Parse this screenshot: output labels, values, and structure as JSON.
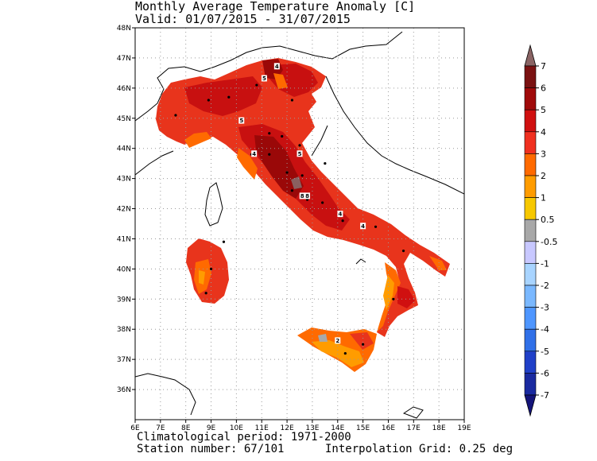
{
  "title": {
    "line1": "Monthly Average Temperature Anomaly [C]",
    "line2": "Valid: 01/07/2015 - 31/07/2015"
  },
  "map": {
    "lon_ticks": [
      "6E",
      "7E",
      "8E",
      "9E",
      "10E",
      "11E",
      "12E",
      "13E",
      "14E",
      "15E",
      "16E",
      "17E",
      "18E",
      "19E"
    ],
    "lat_ticks": [
      "48N",
      "47N",
      "46N",
      "45N",
      "44N",
      "43N",
      "42N",
      "41N",
      "40N",
      "39N",
      "38N",
      "37N",
      "36N"
    ],
    "contour_labels": [
      {
        "text": "4",
        "lon": 11.6,
        "lat": 46.7
      },
      {
        "text": "5",
        "lon": 11.1,
        "lat": 46.3
      },
      {
        "text": "5",
        "lon": 10.2,
        "lat": 44.9
      },
      {
        "text": "5",
        "lon": 12.5,
        "lat": 43.8
      },
      {
        "text": "4",
        "lon": 10.7,
        "lat": 43.8
      },
      {
        "text": "8",
        "lon": 12.6,
        "lat": 42.4
      },
      {
        "text": "8",
        "lon": 12.8,
        "lat": 42.4
      },
      {
        "text": "4",
        "lon": 14.1,
        "lat": 41.8
      },
      {
        "text": "4",
        "lon": 15.0,
        "lat": 41.4
      },
      {
        "text": "2",
        "lon": 14.0,
        "lat": 37.6
      }
    ],
    "stations_shown": true
  },
  "colorbar": {
    "labels": [
      "7",
      "6",
      "5",
      "4",
      "3",
      "2",
      "1",
      "0.5",
      "-0.5",
      "-1",
      "-2",
      "-3",
      "-4",
      "-5",
      "-6",
      "-7"
    ],
    "colors": [
      "#7a1111",
      "#a00a0a",
      "#d01010",
      "#f03020",
      "#ff6a00",
      "#ff9c00",
      "#f7c800",
      "#a8a8a8",
      "#c8c8ff",
      "#a8d4ff",
      "#7ab8ff",
      "#4e96ff",
      "#3070e8",
      "#2040c8",
      "#1a2aa0"
    ],
    "top_color": "#8a6464",
    "bottom_color": "#14147a"
  },
  "footer": {
    "climatological": "Climatological period: 1971-2000",
    "stations": "Station number: 67/101",
    "grid": "Interpolation Grid: 0.25 deg"
  }
}
